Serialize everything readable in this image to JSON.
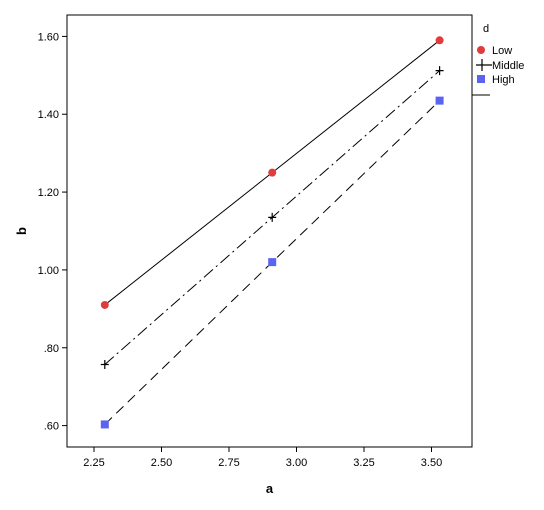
{
  "chart_data": {
    "type": "line",
    "xlabel": "a",
    "ylabel": "b",
    "xlim": [
      2.15,
      3.65
    ],
    "ylim": [
      0.545,
      1.655
    ],
    "x_ticks": [
      2.25,
      2.5,
      2.75,
      3.0,
      3.25,
      3.5
    ],
    "x_tick_labels": [
      "2.25",
      "2.50",
      "2.75",
      "3.00",
      "3.25",
      "3.50"
    ],
    "y_ticks": [
      0.6,
      0.8,
      1.0,
      1.2,
      1.4,
      1.6
    ],
    "y_tick_labels": [
      ".60",
      ".80",
      "1.00",
      "1.20",
      "1.40",
      "1.60"
    ],
    "grid": false,
    "legend": {
      "title": "d",
      "placement": "right"
    },
    "series": [
      {
        "name": "Low",
        "marker": "circle",
        "line_style": "solid",
        "color": "#e03c3c",
        "points": [
          {
            "x": 2.29,
            "y": 0.91
          },
          {
            "x": 2.91,
            "y": 1.25
          },
          {
            "x": 3.53,
            "y": 1.59
          }
        ]
      },
      {
        "name": "Middle",
        "marker": "plus",
        "line_style": "dash-dot",
        "color": "#000000",
        "points": [
          {
            "x": 2.29,
            "y": 0.757
          },
          {
            "x": 2.91,
            "y": 1.135
          },
          {
            "x": 3.53,
            "y": 1.512
          }
        ]
      },
      {
        "name": "High",
        "marker": "square",
        "line_style": "dashed",
        "color": "#5a64f0",
        "points": [
          {
            "x": 2.29,
            "y": 0.603
          },
          {
            "x": 2.91,
            "y": 1.02
          },
          {
            "x": 3.53,
            "y": 1.435
          }
        ]
      }
    ]
  }
}
